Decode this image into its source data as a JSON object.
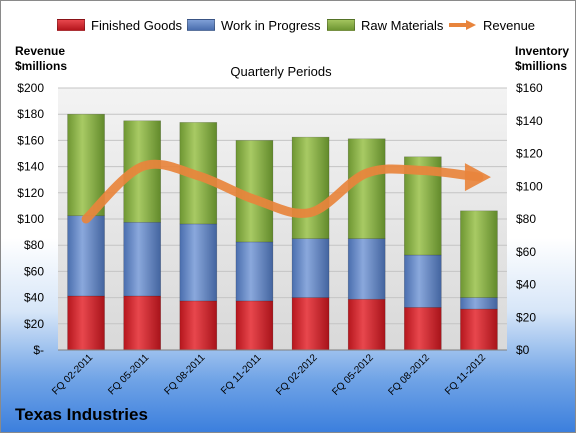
{
  "chart_data": {
    "type": "bar",
    "subtitle": "Quarterly Periods",
    "company": "Texas Industries",
    "left_axis_title_line1": "Revenue",
    "left_axis_title_line2": "$millions",
    "right_axis_title_line1": "Inventory",
    "right_axis_title_line2": "$millions",
    "categories": [
      "FQ 02-2011",
      "FQ 05-2011",
      "FQ 08-2011",
      "FQ 11-2011",
      "FQ 02-2012",
      "FQ 05-2012",
      "FQ 08-2012",
      "FQ 11-2012"
    ],
    "left_ticks": [
      "$-",
      "$20",
      "$40",
      "$60",
      "$80",
      "$100",
      "$120",
      "$140",
      "$160",
      "$180",
      "$200"
    ],
    "right_ticks": [
      "$0",
      "$20",
      "$40",
      "$60",
      "$80",
      "$100",
      "$120",
      "$140",
      "$160"
    ],
    "left_ylim": [
      0,
      200
    ],
    "right_ylim": [
      0,
      160
    ],
    "series": [
      {
        "name": "Finished Goods",
        "color": "#cc2027",
        "axis": "right",
        "values": [
          33,
          33,
          30,
          30,
          32,
          31,
          26,
          25
        ]
      },
      {
        "name": "Work in Progress",
        "color": "#5a7fbf",
        "axis": "right",
        "values": [
          49,
          45,
          47,
          36,
          36,
          37,
          32,
          7
        ]
      },
      {
        "name": "Raw Materials",
        "color": "#7fa640",
        "axis": "right",
        "values": [
          62,
          62,
          62,
          62,
          62,
          61,
          60,
          53
        ]
      }
    ],
    "line_series": {
      "name": "Revenue",
      "color": "#e8843c",
      "axis": "left",
      "values": [
        100,
        140,
        133,
        115,
        105,
        135,
        137,
        132
      ]
    },
    "grid": true,
    "legend_position": "top"
  }
}
